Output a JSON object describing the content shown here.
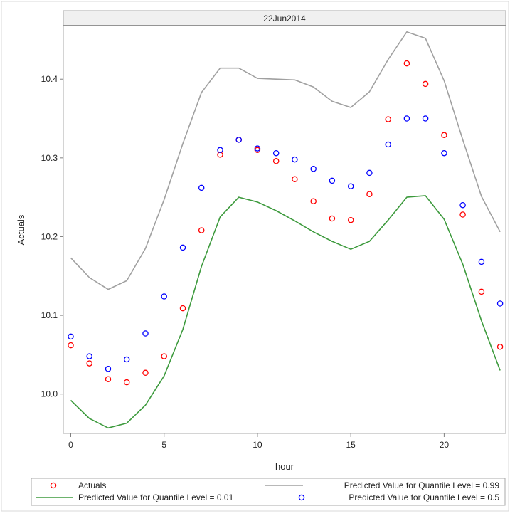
{
  "chart_data": {
    "type": "scatter",
    "panel_title": "22Jun2014",
    "xlabel": "hour",
    "ylabel": "Actuals",
    "xlim": [
      -0.4,
      23.3
    ],
    "ylim": [
      9.95,
      10.468
    ],
    "x_ticks": [
      0,
      5,
      10,
      15,
      20
    ],
    "x_tick_labels": [
      "0",
      "5",
      "10",
      "15",
      "20"
    ],
    "y_ticks": [
      10.0,
      10.1,
      10.2,
      10.3,
      10.4
    ],
    "y_tick_labels": [
      "10.0",
      "10.1",
      "10.2",
      "10.3",
      "10.4"
    ],
    "grid": false,
    "legend_position": "bottom",
    "x": [
      0,
      1,
      2,
      3,
      4,
      5,
      6,
      7,
      8,
      9,
      10,
      11,
      12,
      13,
      14,
      15,
      16,
      17,
      18,
      19,
      20,
      21,
      22,
      23
    ],
    "series": [
      {
        "name": "Actuals",
        "kind": "marker",
        "color": "#ff0000",
        "values": [
          10.062,
          10.039,
          10.019,
          10.015,
          10.027,
          10.048,
          10.109,
          10.208,
          10.304,
          10.323,
          10.31,
          10.296,
          10.273,
          10.245,
          10.223,
          10.221,
          10.254,
          10.349,
          10.42,
          10.394,
          10.329,
          10.228,
          10.13,
          10.06
        ]
      },
      {
        "name": "Predicted Value for Quantile Level = 0.99",
        "kind": "line",
        "color": "#a0a0a0",
        "values": [
          10.173,
          10.148,
          10.133,
          10.144,
          10.185,
          10.247,
          10.318,
          10.383,
          10.414,
          10.414,
          10.401,
          10.4,
          10.399,
          10.39,
          10.372,
          10.364,
          10.384,
          10.425,
          10.46,
          10.452,
          10.398,
          10.323,
          10.251,
          10.206
        ]
      },
      {
        "name": "Predicted Value for Quantile Level = 0.01",
        "kind": "line",
        "color": "#3d9a3d",
        "values": [
          9.992,
          9.969,
          9.957,
          9.963,
          9.986,
          10.023,
          10.082,
          10.162,
          10.225,
          10.25,
          10.244,
          10.233,
          10.22,
          10.206,
          10.194,
          10.184,
          10.194,
          10.221,
          10.25,
          10.252,
          10.222,
          10.165,
          10.093,
          10.03
        ]
      },
      {
        "name": "Predicted Value for Quantile Level = 0.5",
        "kind": "marker",
        "color": "#0000ff",
        "values": [
          10.073,
          10.048,
          10.032,
          10.044,
          10.077,
          10.124,
          10.186,
          10.262,
          10.31,
          10.323,
          10.312,
          10.306,
          10.298,
          10.286,
          10.271,
          10.264,
          10.281,
          10.317,
          10.35,
          10.35,
          10.306,
          10.24,
          10.168,
          10.115
        ]
      }
    ],
    "legend_order": [
      0,
      1,
      2,
      3
    ]
  }
}
